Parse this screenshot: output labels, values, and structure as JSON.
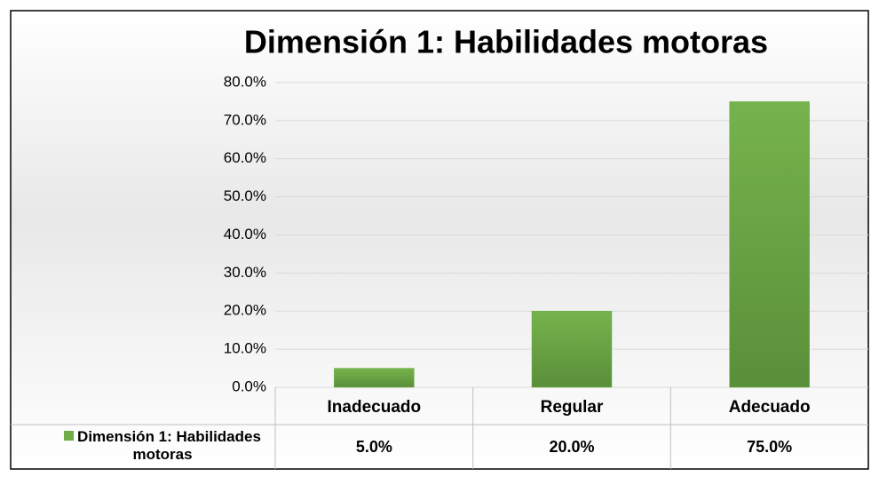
{
  "chart_data": {
    "type": "bar",
    "title": "Dimensión 1: Habilidades motoras",
    "categories": [
      "Inadecuado",
      "Regular",
      "Adecuado"
    ],
    "series": [
      {
        "name": "Dimensión 1: Habilidades motoras",
        "color": "#70ad47",
        "values": [
          5,
          20,
          75
        ],
        "value_labels": [
          "5.0%",
          "20.0%",
          "75.0%"
        ]
      }
    ],
    "ylim": [
      0,
      80
    ],
    "yticks": [
      {
        "value": 0,
        "label": "0.0%"
      },
      {
        "value": 10,
        "label": "10.0%"
      },
      {
        "value": 20,
        "label": "20.0%"
      },
      {
        "value": 30,
        "label": "30.0%"
      },
      {
        "value": 40,
        "label": "40.0%"
      },
      {
        "value": 50,
        "label": "50.0%"
      },
      {
        "value": 60,
        "label": "60.0%"
      },
      {
        "value": 70,
        "label": "70.0%"
      },
      {
        "value": 80,
        "label": "80.0%"
      }
    ],
    "grid": true
  }
}
